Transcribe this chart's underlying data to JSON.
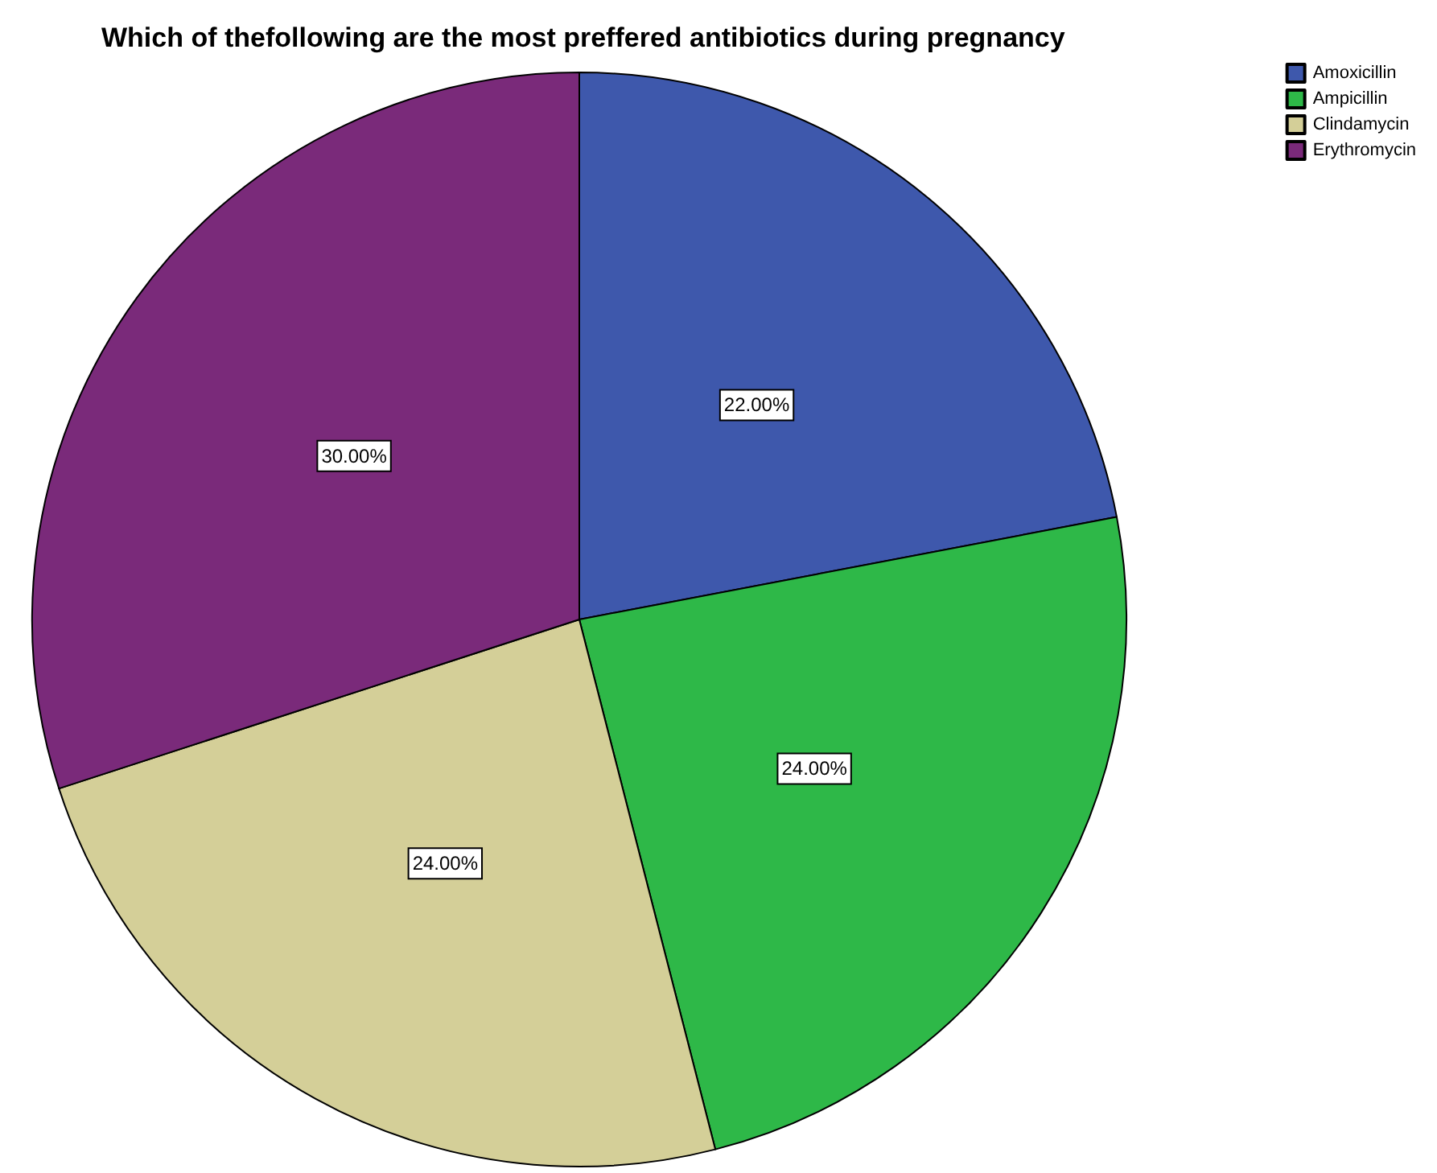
{
  "chart_data": {
    "type": "pie",
    "title": "Which of thefollowing are the most preffered antibiotics during pregnancy",
    "categories": [
      "Amoxicillin",
      "Ampicillin",
      "Clindamycin",
      "Erythromycin"
    ],
    "values": [
      22,
      24,
      24,
      30
    ],
    "colors": [
      "#3e58ac",
      "#2eb848",
      "#d4cf98",
      "#7a2a7a"
    ],
    "value_labels": [
      "22.00%",
      "24.00%",
      "24.00%",
      "30.00%"
    ],
    "legend": "top right"
  }
}
